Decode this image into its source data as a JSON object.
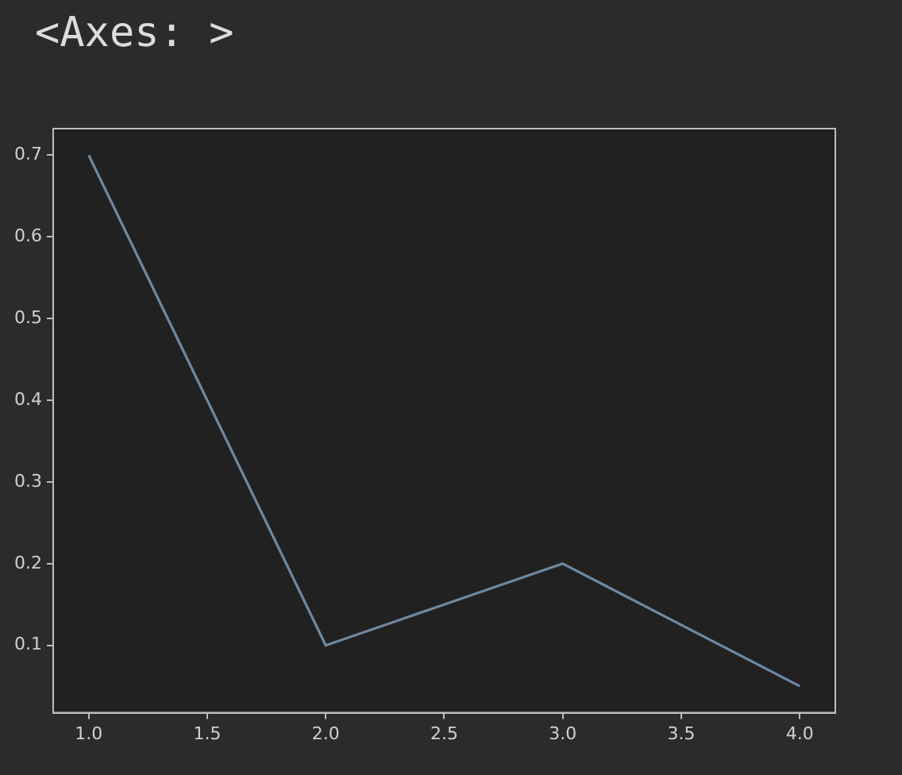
{
  "chart_data": {
    "type": "line",
    "annotations": [
      "<Axes: >"
    ],
    "x": [
      1,
      2,
      3,
      4
    ],
    "series": [
      {
        "color": "#7088a0",
        "values": [
          0.7,
          0.1,
          0.2,
          0.05
        ]
      }
    ],
    "xlim": [
      0.85,
      4.15
    ],
    "xticks": [
      {
        "value": 1,
        "label": "1.0"
      },
      {
        "value": 1.5,
        "label": "1.5"
      },
      {
        "value": 2,
        "label": "2.0"
      },
      {
        "value": 2.5,
        "label": "2.5"
      },
      {
        "value": 3,
        "label": "3.0"
      },
      {
        "value": 3.5,
        "label": "3.5"
      },
      {
        "value": 4,
        "label": "4.0"
      }
    ],
    "ylim": [
      0.0175,
      0.7325
    ],
    "yticks": [
      0.1,
      0.2,
      0.3,
      0.4,
      0.5,
      0.6,
      0.7
    ],
    "grid": false,
    "legend": false,
    "marker": "none",
    "line_style": "solid"
  }
}
